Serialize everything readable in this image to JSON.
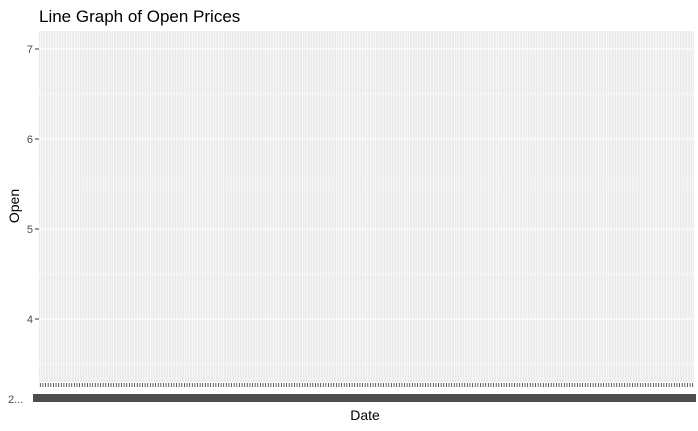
{
  "chart_data": {
    "type": "line",
    "title": "Line Graph of Open Prices",
    "xlabel": "Date",
    "ylabel": "Open",
    "ylim": [
      3.3,
      7.2
    ],
    "y_ticks": [
      4,
      5,
      6,
      7
    ],
    "y_tick_labels": [
      "4",
      "5",
      "6",
      "7"
    ],
    "x_category_count": 250,
    "x_tick_labels_overlapping": "2...",
    "series": [],
    "grid": true,
    "legend": "none",
    "colors": {
      "panel_background": "#ebebeb",
      "gridline": "#ffffff",
      "tick_text": "#4d4d4d",
      "tick_mark": "#333333",
      "text": "#000000"
    }
  }
}
